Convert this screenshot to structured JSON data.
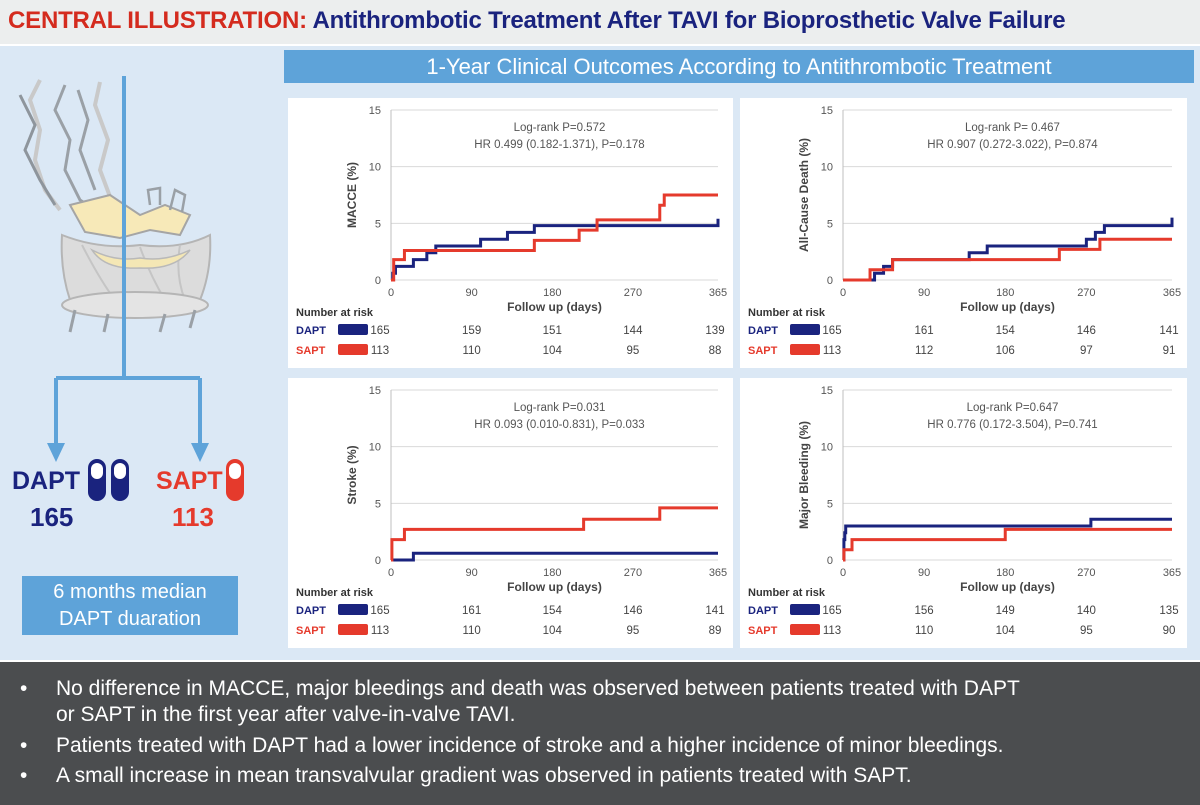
{
  "title": {
    "label": "CENTRAL ILLUSTRATION:",
    "text": "Antithrombotic Treatment After TAVI for Bioprosthetic Valve Failure"
  },
  "header": "1-Year Clinical Outcomes According to Antithrombotic Treatment",
  "arms": {
    "dapt": {
      "label": "DAPT",
      "n": "165"
    },
    "sapt": {
      "label": "SAPT",
      "n": "113"
    },
    "duration": {
      "line1": "6 months median",
      "line2": "DAPT duaration"
    }
  },
  "colors": {
    "dapt": "#1a237e",
    "sapt": "#e53a2c",
    "accent": "#5ea3d9",
    "panel": "#dbe8f5",
    "footer": "#4b4d4f"
  },
  "risk_label": "Number at risk",
  "chart_data": [
    {
      "type": "line",
      "step": true,
      "ylabel": "MACCE (%)",
      "xlabel": "Follow up (days)",
      "xlim": [
        0,
        365
      ],
      "ylim": [
        0,
        15
      ],
      "xticks": [
        0,
        90,
        180,
        270,
        365
      ],
      "yticks": [
        0,
        5,
        10,
        15
      ],
      "stats": [
        "Log-rank P=0.572",
        "HR 0.499 (0.182-1.371), P=0.178"
      ],
      "series": [
        {
          "name": "DAPT",
          "x": [
            0,
            2,
            5,
            25,
            40,
            50,
            100,
            130,
            160,
            280,
            360,
            365
          ],
          "y": [
            0,
            0.6,
            1.2,
            1.8,
            2.4,
            3.0,
            3.6,
            4.2,
            4.8,
            4.8,
            4.8,
            5.4
          ]
        },
        {
          "name": "SAPT",
          "x": [
            0,
            3,
            15,
            35,
            85,
            160,
            210,
            230,
            300,
            305,
            365
          ],
          "y": [
            0,
            1.8,
            2.6,
            2.6,
            2.6,
            3.5,
            4.4,
            5.3,
            6.6,
            7.5,
            7.5
          ]
        }
      ],
      "risk": {
        "DAPT": [
          "165",
          "159",
          "151",
          "144",
          "139"
        ],
        "SAPT": [
          "113",
          "110",
          "104",
          "95",
          "88"
        ]
      }
    },
    {
      "type": "line",
      "step": true,
      "ylabel": "All-Cause Death (%)",
      "xlabel": "Follow up (days)",
      "xlim": [
        0,
        365
      ],
      "ylim": [
        0,
        15
      ],
      "xticks": [
        0,
        90,
        180,
        270,
        365
      ],
      "yticks": [
        0,
        5,
        10,
        15
      ],
      "stats": [
        "Log-rank P= 0.467",
        "HR 0.907 (0.272-3.022), P=0.874"
      ],
      "series": [
        {
          "name": "DAPT",
          "x": [
            0,
            35,
            45,
            55,
            60,
            140,
            160,
            270,
            280,
            290,
            365
          ],
          "y": [
            0,
            0.6,
            1.2,
            1.8,
            1.8,
            2.4,
            3.0,
            3.6,
            4.2,
            4.8,
            5.5
          ]
        },
        {
          "name": "SAPT",
          "x": [
            0,
            30,
            55,
            130,
            185,
            240,
            285,
            365
          ],
          "y": [
            0,
            0.9,
            1.8,
            1.8,
            1.8,
            2.7,
            3.6,
            3.6
          ]
        }
      ],
      "risk": {
        "DAPT": [
          "165",
          "161",
          "154",
          "146",
          "141"
        ],
        "SAPT": [
          "113",
          "112",
          "106",
          "97",
          "91"
        ]
      }
    },
    {
      "type": "line",
      "step": true,
      "ylabel": "Stroke (%)",
      "xlabel": "Follow up (days)",
      "xlim": [
        0,
        365
      ],
      "ylim": [
        0,
        15
      ],
      "xticks": [
        0,
        90,
        180,
        270,
        365
      ],
      "yticks": [
        0,
        5,
        10,
        15
      ],
      "stats": [
        "Log-rank P=0.031",
        "HR 0.093 (0.010-0.831), P=0.033"
      ],
      "series": [
        {
          "name": "DAPT",
          "x": [
            0,
            25,
            365
          ],
          "y": [
            0,
            0.6,
            0.6
          ]
        },
        {
          "name": "SAPT",
          "x": [
            0,
            1,
            15,
            215,
            300,
            365
          ],
          "y": [
            0,
            1.8,
            2.7,
            3.6,
            4.6,
            4.6
          ]
        }
      ],
      "risk": {
        "DAPT": [
          "165",
          "161",
          "154",
          "146",
          "141"
        ],
        "SAPT": [
          "113",
          "110",
          "104",
          "95",
          "89"
        ]
      }
    },
    {
      "type": "line",
      "step": true,
      "ylabel": "Major Bleeding (%)",
      "xlabel": "Follow up (days)",
      "xlim": [
        0,
        365
      ],
      "ylim": [
        0,
        15
      ],
      "xticks": [
        0,
        90,
        180,
        270,
        365
      ],
      "yticks": [
        0,
        5,
        10,
        15
      ],
      "stats": [
        "Log-rank P=0.647",
        "HR 0.776 (0.172-3.504), P=0.741"
      ],
      "series": [
        {
          "name": "DAPT",
          "x": [
            0,
            1,
            2,
            3,
            275,
            365
          ],
          "y": [
            0,
            1.8,
            2.4,
            3.0,
            3.6,
            3.6
          ]
        },
        {
          "name": "SAPT",
          "x": [
            0,
            1,
            10,
            180,
            365
          ],
          "y": [
            0,
            0.9,
            1.8,
            2.7,
            2.7
          ]
        }
      ],
      "risk": {
        "DAPT": [
          "165",
          "156",
          "149",
          "140",
          "135"
        ],
        "SAPT": [
          "113",
          "110",
          "104",
          "95",
          "90"
        ]
      }
    }
  ],
  "bullets": [
    {
      "line1": "No difference in MACCE, major bleedings and death was observed between patients treated with DAPT",
      "line2": "or SAPT in the first year after valve-in-valve TAVI."
    },
    {
      "line1": "Patients treated with DAPT had a lower incidence of stroke and a higher incidence of minor bleedings."
    },
    {
      "line1": "A small increase in mean transvalvular gradient was observed in patients treated with SAPT."
    }
  ],
  "bullet_char": "•"
}
